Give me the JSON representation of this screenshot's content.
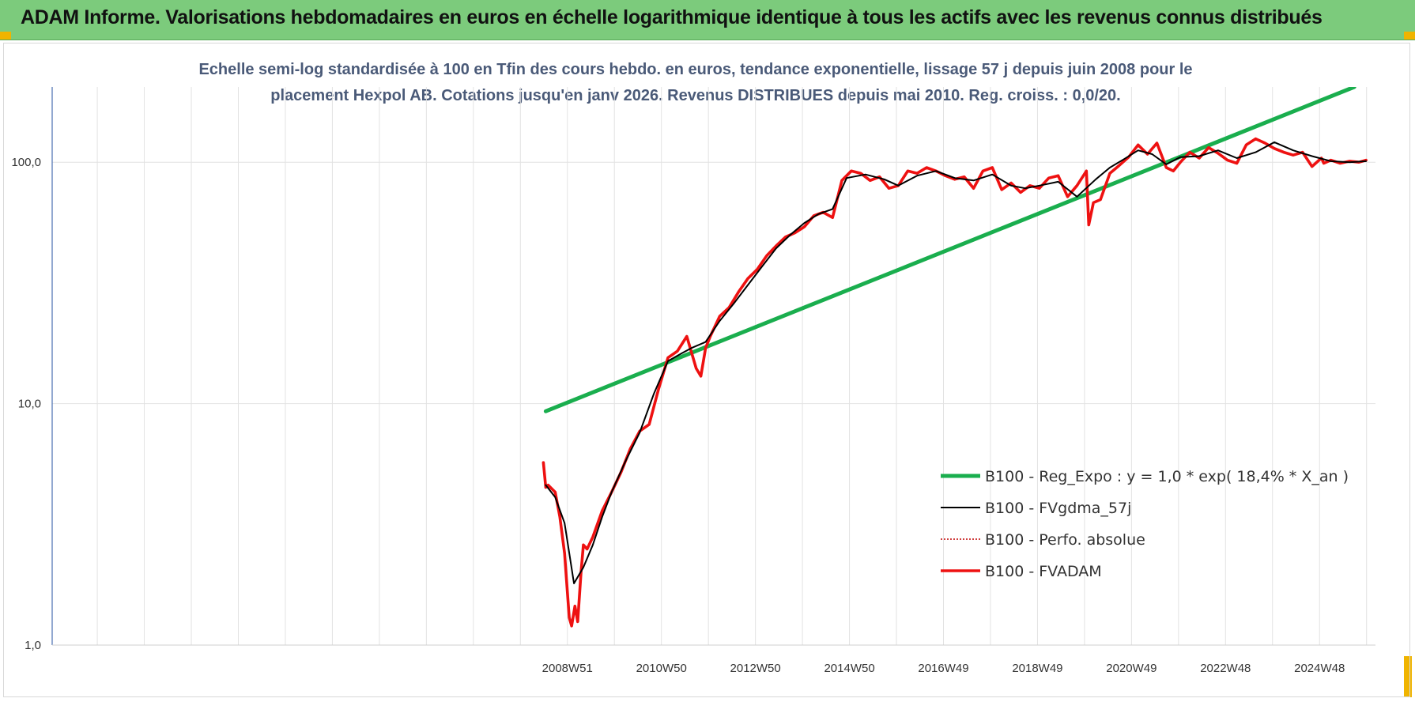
{
  "banner": {
    "title": "ADAM Informe. Valorisations hebdomadaires en euros en échelle logarithmique identique à tous les actifs avec les revenus connus distribués"
  },
  "colors": {
    "banner": "#7ccb7c",
    "regression": "#1aae4e",
    "smoothed": "#000000",
    "absolute": "#c00000",
    "fvadam": "#ee1111",
    "grid": "#e2e2e2"
  },
  "chart_data": {
    "type": "line",
    "title_line1": "Echelle semi-log standardisée à 100 en Tfin des cours hebdo. en euros, tendance exponentielle, lissage 57 j depuis juin 2008 pour le",
    "title_line2": "placement Hexpol AB. Cotations jusqu'en janv 2026. Revenus DISTRIBUES depuis mai 2010. Reg. croiss. : 0,0/20.",
    "y_scale": "log",
    "ylim": [
      1,
      205
    ],
    "y_ticks": [
      {
        "value": 1,
        "label": "1,0"
      },
      {
        "value": 10,
        "label": "10,0"
      },
      {
        "value": 100,
        "label": "100,0"
      }
    ],
    "xlim": [
      1998.0,
      2026.15
    ],
    "x_ticks": [
      {
        "value": 2008.96,
        "label": "2008W51"
      },
      {
        "value": 2010.96,
        "label": "2010W50"
      },
      {
        "value": 2012.96,
        "label": "2012W50"
      },
      {
        "value": 2014.96,
        "label": "2014W50"
      },
      {
        "value": 2016.96,
        "label": "2016W49"
      },
      {
        "value": 2018.96,
        "label": "2018W49"
      },
      {
        "value": 2020.96,
        "label": "2020W49"
      },
      {
        "value": 2022.96,
        "label": "2022W48"
      },
      {
        "value": 2024.96,
        "label": "2024W48"
      }
    ],
    "grid": true,
    "legend_position": "bottom-right",
    "series": [
      {
        "key": "reg",
        "name": "B100 - Reg_Expo : y = 1,0 * exp( 18,4% *  X_an )",
        "style": "solid-thick",
        "x": [
          2008.5,
          2025.7
        ],
        "y": [
          9.3,
          205
        ]
      },
      {
        "key": "fvgdma",
        "name": "B100 - FVgdma_57j",
        "style": "solid-thin",
        "x": [
          2008.5,
          2008.7,
          2008.9,
          2009.1,
          2009.3,
          2009.5,
          2009.7,
          2009.9,
          2010.2,
          2010.5,
          2010.8,
          2011.1,
          2011.4,
          2011.6,
          2011.9,
          2012.2,
          2012.5,
          2012.8,
          2013.1,
          2013.4,
          2013.7,
          2014.0,
          2014.3,
          2014.6,
          2014.9,
          2015.3,
          2015.7,
          2016.0,
          2016.4,
          2016.8,
          2017.2,
          2017.6,
          2018.0,
          2018.4,
          2018.7,
          2019.0,
          2019.4,
          2019.8,
          2020.2,
          2020.5,
          2020.8,
          2021.1,
          2021.4,
          2021.7,
          2022.0,
          2022.4,
          2022.8,
          2023.2,
          2023.6,
          2024.0,
          2024.4,
          2024.8,
          2025.2,
          2025.6,
          2025.95
        ],
        "y": [
          4.6,
          4.1,
          3.2,
          1.8,
          2.1,
          2.6,
          3.4,
          4.3,
          5.8,
          7.6,
          11.0,
          15.0,
          16.2,
          17.0,
          18.0,
          22.0,
          26.0,
          31.0,
          37.0,
          44.0,
          50.0,
          56.0,
          61.0,
          64.0,
          86.0,
          89.0,
          85.0,
          80.0,
          88.0,
          92.0,
          86.0,
          84.0,
          89.0,
          80.0,
          78.0,
          80.0,
          83.0,
          72.0,
          85.0,
          95.0,
          103.0,
          112.0,
          108.0,
          98.0,
          105.0,
          106.0,
          112.0,
          104.0,
          110.0,
          121.0,
          112.0,
          106.0,
          101.0,
          100.0,
          101.0
        ]
      },
      {
        "key": "abs",
        "name": "B100 - Perfo. absolue",
        "style": "dotted",
        "x": [],
        "y": []
      },
      {
        "key": "fvadam",
        "name": "B100 - FVADAM",
        "style": "solid-thick",
        "x": [
          2008.45,
          2008.5,
          2008.55,
          2008.7,
          2008.8,
          2008.9,
          2009.0,
          2009.05,
          2009.12,
          2009.18,
          2009.25,
          2009.3,
          2009.38,
          2009.5,
          2009.7,
          2009.9,
          2010.1,
          2010.3,
          2010.5,
          2010.7,
          2010.9,
          2011.1,
          2011.3,
          2011.5,
          2011.7,
          2011.8,
          2011.9,
          2012.0,
          2012.2,
          2012.4,
          2012.6,
          2012.8,
          2013.0,
          2013.2,
          2013.4,
          2013.6,
          2013.8,
          2014.0,
          2014.2,
          2014.4,
          2014.6,
          2014.8,
          2015.0,
          2015.2,
          2015.4,
          2015.6,
          2015.8,
          2016.0,
          2016.2,
          2016.4,
          2016.6,
          2016.8,
          2017.0,
          2017.2,
          2017.4,
          2017.6,
          2017.8,
          2018.0,
          2018.2,
          2018.4,
          2018.6,
          2018.8,
          2019.0,
          2019.2,
          2019.4,
          2019.6,
          2019.8,
          2020.0,
          2020.05,
          2020.15,
          2020.3,
          2020.5,
          2020.7,
          2020.9,
          2021.1,
          2021.3,
          2021.5,
          2021.7,
          2021.85,
          2022.0,
          2022.2,
          2022.4,
          2022.6,
          2022.8,
          2023.0,
          2023.2,
          2023.4,
          2023.6,
          2023.8,
          2024.0,
          2024.2,
          2024.4,
          2024.6,
          2024.8,
          2025.0,
          2025.05,
          2025.2,
          2025.4,
          2025.6,
          2025.8,
          2025.95
        ],
        "y": [
          5.7,
          4.5,
          4.6,
          4.3,
          3.4,
          2.4,
          1.3,
          1.2,
          1.45,
          1.25,
          2.0,
          2.6,
          2.5,
          2.8,
          3.6,
          4.3,
          5.2,
          6.5,
          7.7,
          8.2,
          11.5,
          15.5,
          16.5,
          19.0,
          14.0,
          13.0,
          17.0,
          19.0,
          23.0,
          25.0,
          29.0,
          33.0,
          36.0,
          41.0,
          45.0,
          49.0,
          51.0,
          54.0,
          60.0,
          62.0,
          59.0,
          84.0,
          92.0,
          90.0,
          84.0,
          87.0,
          78.0,
          80.0,
          92.0,
          90.0,
          95.0,
          92.0,
          88.0,
          85.0,
          87.0,
          78.0,
          92.0,
          95.0,
          77.0,
          82.0,
          75.0,
          80.0,
          78.0,
          86.0,
          88.0,
          72.0,
          80.0,
          92.0,
          55.0,
          68.0,
          70.0,
          90.0,
          97.0,
          105.0,
          118.0,
          108.0,
          120.0,
          95.0,
          92.0,
          100.0,
          110.0,
          104.0,
          115.0,
          109.0,
          102.0,
          99.0,
          118.0,
          125.0,
          120.0,
          114.0,
          110.0,
          107.0,
          110.0,
          96.0,
          104.0,
          99.0,
          102.0,
          99.0,
          101.0,
          100.0,
          102.0
        ]
      }
    ]
  }
}
